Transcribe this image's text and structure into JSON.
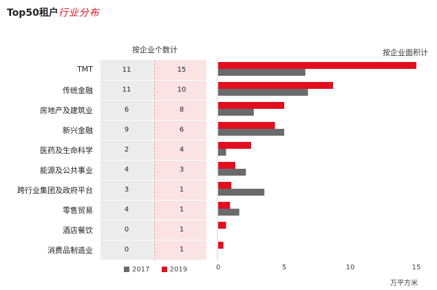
{
  "title": {
    "main": "Top50租户",
    "accent": "行业分布"
  },
  "left_header": "按企业个数计",
  "right_header": "按企业面积计",
  "unit_label": "万平方米",
  "colors": {
    "y2017": "#6b6b6b",
    "y2019": "#e0101e"
  },
  "chart_data": {
    "type": "bar",
    "categories": [
      "TMT",
      "传统金融",
      "房地产及建筑业",
      "新兴金融",
      "医药及生命科学",
      "能源及公共事业",
      "跨行业集团及政府平台",
      "零售贸易",
      "酒店餐饮",
      "消费品制造业"
    ],
    "series": [
      {
        "name": "2017",
        "counts": [
          11,
          11,
          6,
          9,
          2,
          4,
          3,
          4,
          0,
          0
        ],
        "values": [
          6.6,
          6.8,
          2.7,
          5.0,
          0.6,
          2.1,
          3.5,
          1.6,
          0,
          0
        ]
      },
      {
        "name": "2019",
        "counts": [
          15,
          10,
          8,
          6,
          4,
          3,
          1,
          1,
          1,
          1
        ],
        "values": [
          15.0,
          8.7,
          5.0,
          4.3,
          2.5,
          1.3,
          1.0,
          0.9,
          0.6,
          0.4
        ]
      }
    ],
    "xlim": [
      0,
      15
    ],
    "xticks": [
      "0",
      "5",
      "10",
      "15"
    ],
    "xlabel": "万平方米",
    "legend": [
      "2017",
      "2019"
    ]
  }
}
